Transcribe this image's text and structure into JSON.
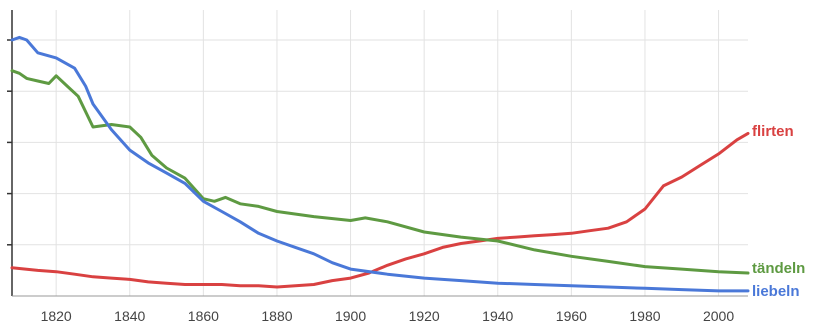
{
  "chart_data": {
    "type": "line",
    "title": "",
    "xlabel": "",
    "ylabel": "",
    "xlim": [
      1808,
      2008
    ],
    "ylim": [
      0,
      1
    ],
    "x_ticks": [
      1820,
      1840,
      1860,
      1880,
      1900,
      1920,
      1940,
      1960,
      1980,
      2000
    ],
    "x_tick_labels": [
      "1820",
      "1840",
      "1860",
      "1880",
      "1900",
      "1920",
      "1940",
      "1960",
      "1980",
      "2000"
    ],
    "y_tick_labels": [],
    "grid": true,
    "legend": "end-of-line labels",
    "series": [
      {
        "name": "flirten",
        "color": "#d94141",
        "x": [
          1808,
          1815,
          1820,
          1825,
          1830,
          1835,
          1840,
          1845,
          1850,
          1855,
          1860,
          1865,
          1870,
          1875,
          1880,
          1885,
          1890,
          1895,
          1900,
          1905,
          1910,
          1915,
          1920,
          1925,
          1930,
          1935,
          1940,
          1945,
          1950,
          1955,
          1960,
          1965,
          1970,
          1975,
          1980,
          1985,
          1990,
          1995,
          2000,
          2005,
          2008
        ],
        "values": [
          0.11,
          0.1,
          0.095,
          0.085,
          0.075,
          0.07,
          0.065,
          0.055,
          0.05,
          0.045,
          0.045,
          0.045,
          0.04,
          0.04,
          0.035,
          0.04,
          0.045,
          0.06,
          0.07,
          0.09,
          0.12,
          0.145,
          0.165,
          0.19,
          0.205,
          0.215,
          0.225,
          0.23,
          0.235,
          0.24,
          0.245,
          0.255,
          0.265,
          0.29,
          0.34,
          0.43,
          0.465,
          0.51,
          0.555,
          0.61,
          0.635
        ]
      },
      {
        "name": "tändeln",
        "color": "#5e9a42",
        "x": [
          1808,
          1810,
          1812,
          1815,
          1818,
          1820,
          1823,
          1826,
          1830,
          1835,
          1840,
          1843,
          1846,
          1850,
          1855,
          1860,
          1863,
          1866,
          1870,
          1875,
          1880,
          1890,
          1900,
          1904,
          1910,
          1920,
          1930,
          1940,
          1950,
          1960,
          1970,
          1980,
          1990,
          2000,
          2008
        ],
        "values": [
          0.88,
          0.87,
          0.85,
          0.84,
          0.83,
          0.86,
          0.82,
          0.78,
          0.66,
          0.67,
          0.66,
          0.62,
          0.55,
          0.5,
          0.46,
          0.38,
          0.37,
          0.385,
          0.36,
          0.35,
          0.33,
          0.31,
          0.295,
          0.305,
          0.29,
          0.25,
          0.23,
          0.215,
          0.18,
          0.155,
          0.135,
          0.115,
          0.105,
          0.095,
          0.09
        ]
      },
      {
        "name": "liebeln",
        "color": "#4a78d8",
        "x": [
          1808,
          1810,
          1812,
          1815,
          1820,
          1825,
          1828,
          1830,
          1835,
          1840,
          1845,
          1850,
          1855,
          1860,
          1865,
          1870,
          1875,
          1880,
          1885,
          1890,
          1895,
          1900,
          1910,
          1920,
          1930,
          1940,
          1950,
          1960,
          1970,
          1980,
          1990,
          2000,
          2008
        ],
        "values": [
          1.0,
          1.01,
          1.0,
          0.95,
          0.93,
          0.89,
          0.82,
          0.75,
          0.65,
          0.57,
          0.52,
          0.48,
          0.44,
          0.37,
          0.33,
          0.29,
          0.245,
          0.215,
          0.19,
          0.165,
          0.13,
          0.105,
          0.085,
          0.07,
          0.06,
          0.05,
          0.045,
          0.04,
          0.035,
          0.03,
          0.025,
          0.02,
          0.02
        ]
      }
    ]
  }
}
